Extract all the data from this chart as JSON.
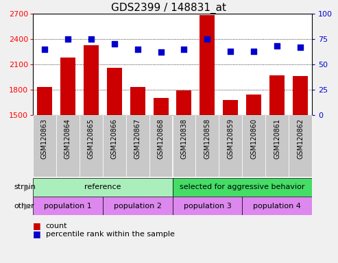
{
  "title": "GDS2399 / 148831_at",
  "samples": [
    "GSM120863",
    "GSM120864",
    "GSM120865",
    "GSM120866",
    "GSM120867",
    "GSM120868",
    "GSM120838",
    "GSM120858",
    "GSM120859",
    "GSM120860",
    "GSM120861",
    "GSM120862"
  ],
  "counts": [
    1830,
    2180,
    2330,
    2060,
    1830,
    1700,
    1790,
    2680,
    1680,
    1740,
    1970,
    1960
  ],
  "percentiles": [
    65,
    75,
    75,
    70,
    65,
    62,
    65,
    75,
    63,
    63,
    68,
    67
  ],
  "ylim_left": [
    1500,
    2700
  ],
  "ylim_right": [
    0,
    100
  ],
  "yticks_left": [
    1500,
    1800,
    2100,
    2400,
    2700
  ],
  "yticks_right": [
    0,
    25,
    50,
    75,
    100
  ],
  "bar_color": "#cc0000",
  "scatter_color": "#0000cc",
  "bg_color": "#f0f0f0",
  "plot_bg_color": "#ffffff",
  "xtick_bg_color": "#c8c8c8",
  "xtick_border_color": "#aaaaaa",
  "strain_groups": [
    {
      "label": "reference",
      "start": 0,
      "end": 6,
      "color": "#aaeebb"
    },
    {
      "label": "selected for aggressive behavior",
      "start": 6,
      "end": 12,
      "color": "#44dd66"
    }
  ],
  "other_groups": [
    {
      "label": "population 1",
      "start": 0,
      "end": 3,
      "color": "#dd88ee"
    },
    {
      "label": "population 2",
      "start": 3,
      "end": 6,
      "color": "#dd88ee"
    },
    {
      "label": "population 3",
      "start": 6,
      "end": 9,
      "color": "#dd88ee"
    },
    {
      "label": "population 4",
      "start": 9,
      "end": 12,
      "color": "#dd88ee"
    }
  ],
  "strain_label": "strain",
  "other_label": "other",
  "legend_count_label": "count",
  "legend_pct_label": "percentile rank within the sample",
  "title_fontsize": 11,
  "tick_fontsize": 8,
  "sample_fontsize": 7,
  "annotation_fontsize": 8,
  "legend_fontsize": 8
}
